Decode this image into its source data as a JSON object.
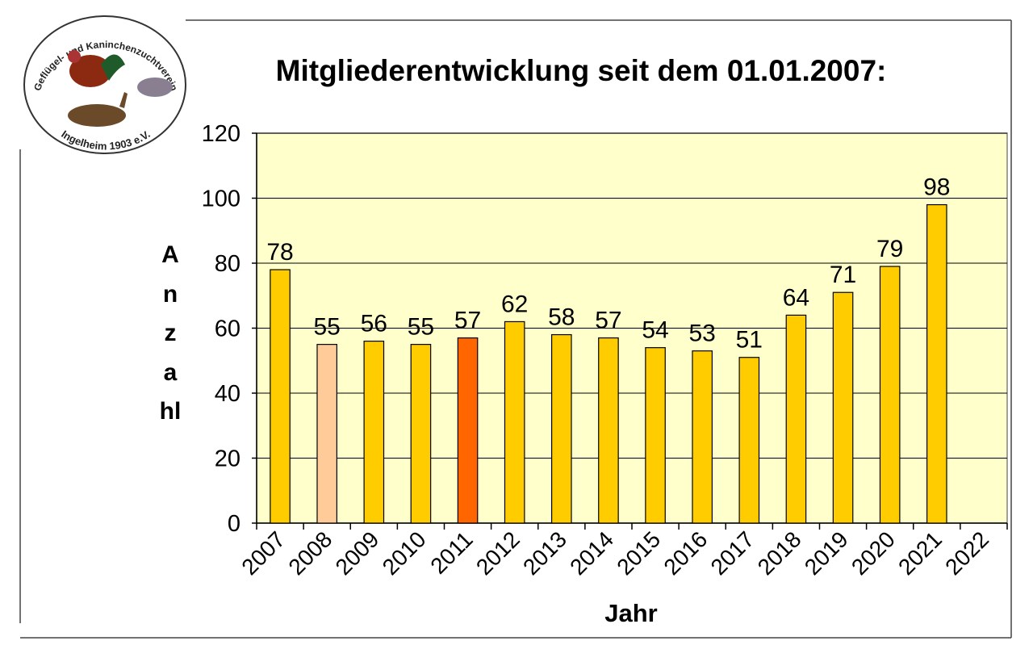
{
  "chart_data": {
    "type": "bar",
    "title": "Mitgliederentwicklung seit dem 01.01.2007:",
    "logo_text": [
      "Geflügel- und Kaninchenzuchtverein",
      "Ingelheim 1903 e.V."
    ],
    "xlabel": "Jahr",
    "ylabel": "Anzahl",
    "categories": [
      "2007",
      "2008",
      "2009",
      "2010",
      "2011",
      "2012",
      "2013",
      "2014",
      "2015",
      "2016",
      "2017",
      "2018",
      "2019",
      "2020",
      "2021",
      "2022"
    ],
    "values": [
      78,
      55,
      56,
      55,
      57,
      62,
      58,
      57,
      54,
      53,
      51,
      64,
      71,
      79,
      98,
      null
    ],
    "colors": [
      "#FFCC00",
      "#FFCC99",
      "#FFCC00",
      "#FFCC00",
      "#FF6600",
      "#FFCC00",
      "#FFCC00",
      "#FFCC00",
      "#FFCC00",
      "#FFCC00",
      "#FFCC00",
      "#FFCC00",
      "#FFCC00",
      "#FFCC00",
      "#FFCC00",
      "#FFCC00"
    ],
    "plot_background": "#FFFFCC",
    "ylim": [
      0,
      120
    ],
    "yticks": [
      0,
      20,
      40,
      60,
      80,
      100,
      120
    ],
    "grid": true
  }
}
